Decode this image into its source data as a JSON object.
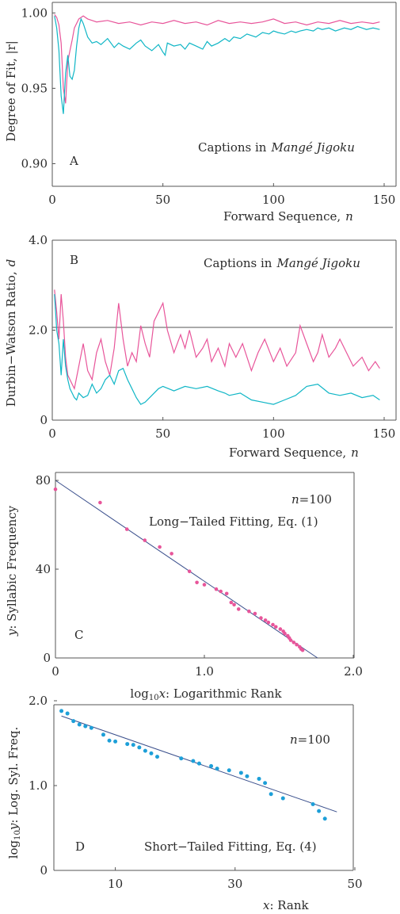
{
  "colors": {
    "pink": "#e8559a",
    "cyan": "#10b6c6",
    "blue": "#1d9fd8",
    "line": "#3a4f8c",
    "axis": "#555555"
  },
  "chart_data": [
    {
      "panel": "A",
      "type": "line",
      "ylabel": "Degree of Fit, |r|",
      "xlabel": "Forward Sequence, n",
      "annotation": "Captions in Mangé Jigoku",
      "xlim": [
        0,
        150
      ],
      "ylim": [
        0.885,
        1.007
      ],
      "xticks": [
        "0",
        "50",
        "100",
        "150"
      ],
      "yticks": [
        "0.90",
        "0.95",
        "1.00"
      ],
      "series": [
        {
          "color": "pink",
          "x": [
            1,
            2,
            3,
            4,
            5,
            6,
            7,
            8,
            9,
            10,
            12,
            14,
            16,
            18,
            20,
            25,
            30,
            35,
            40,
            45,
            50,
            55,
            60,
            65,
            70,
            75,
            80,
            85,
            90,
            95,
            100,
            105,
            110,
            115,
            120,
            125,
            130,
            135,
            140,
            145,
            148
          ],
          "y": [
            0.999,
            0.997,
            0.992,
            0.98,
            0.95,
            0.94,
            0.968,
            0.975,
            0.982,
            0.99,
            0.996,
            0.998,
            0.996,
            0.995,
            0.994,
            0.995,
            0.993,
            0.994,
            0.992,
            0.994,
            0.993,
            0.995,
            0.993,
            0.994,
            0.992,
            0.995,
            0.993,
            0.994,
            0.993,
            0.994,
            0.996,
            0.993,
            0.994,
            0.992,
            0.994,
            0.993,
            0.995,
            0.993,
            0.994,
            0.993,
            0.994
          ]
        },
        {
          "color": "cyan",
          "x": [
            1,
            2,
            3,
            4,
            5,
            6,
            7,
            8,
            9,
            10,
            11,
            12,
            13,
            14,
            16,
            18,
            20,
            22,
            25,
            28,
            30,
            32,
            35,
            38,
            40,
            42,
            45,
            48,
            50,
            51,
            52,
            55,
            58,
            60,
            62,
            65,
            68,
            70,
            72,
            75,
            78,
            80,
            82,
            85,
            88,
            90,
            92,
            95,
            98,
            100,
            102,
            105,
            108,
            110,
            112,
            115,
            118,
            120,
            122,
            125,
            128,
            130,
            132,
            135,
            138,
            140,
            142,
            145,
            148
          ],
          "y": [
            0.998,
            0.99,
            0.975,
            0.945,
            0.933,
            0.96,
            0.972,
            0.958,
            0.956,
            0.962,
            0.978,
            0.99,
            0.996,
            0.993,
            0.984,
            0.98,
            0.981,
            0.979,
            0.983,
            0.977,
            0.98,
            0.978,
            0.976,
            0.98,
            0.982,
            0.978,
            0.975,
            0.979,
            0.974,
            0.972,
            0.98,
            0.978,
            0.979,
            0.976,
            0.98,
            0.978,
            0.976,
            0.981,
            0.978,
            0.98,
            0.983,
            0.981,
            0.984,
            0.983,
            0.986,
            0.985,
            0.984,
            0.987,
            0.986,
            0.988,
            0.987,
            0.986,
            0.988,
            0.987,
            0.988,
            0.989,
            0.988,
            0.99,
            0.989,
            0.99,
            0.988,
            0.989,
            0.99,
            0.989,
            0.991,
            0.99,
            0.989,
            0.99,
            0.989
          ]
        }
      ]
    },
    {
      "panel": "B",
      "type": "line",
      "ylabel": "Durbin−Watson Ratio, d",
      "xlabel": "Forward Sequence, n",
      "annotation": "Captions in Mangé Jigoku",
      "xlim": [
        0,
        150
      ],
      "ylim": [
        0,
        4.0
      ],
      "xticks": [
        "0",
        "50",
        "100",
        "150"
      ],
      "yticks": [
        "0",
        "2.0",
        "4.0"
      ],
      "reference_line": 2.0,
      "series": [
        {
          "color": "pink",
          "x": [
            1,
            2,
            3,
            4,
            5,
            6,
            7,
            8,
            9,
            10,
            12,
            14,
            16,
            18,
            20,
            22,
            24,
            26,
            28,
            30,
            32,
            34,
            36,
            38,
            40,
            42,
            44,
            46,
            48,
            50,
            52,
            55,
            58,
            60,
            62,
            65,
            68,
            70,
            72,
            75,
            78,
            80,
            83,
            86,
            90,
            93,
            96,
            100,
            103,
            106,
            110,
            112,
            115,
            118,
            120,
            122,
            125,
            128,
            130,
            133,
            136,
            140,
            143,
            146,
            148
          ],
          "y": [
            2.9,
            2.4,
            1.8,
            2.8,
            2.2,
            1.4,
            1.0,
            0.9,
            0.8,
            0.7,
            1.2,
            1.7,
            1.1,
            0.9,
            1.5,
            1.8,
            1.3,
            1.0,
            1.6,
            2.6,
            1.8,
            1.2,
            1.5,
            1.3,
            2.1,
            1.7,
            1.4,
            2.2,
            2.4,
            2.6,
            2.0,
            1.5,
            1.9,
            1.6,
            2.0,
            1.4,
            1.6,
            1.8,
            1.3,
            1.6,
            1.2,
            1.7,
            1.4,
            1.7,
            1.1,
            1.5,
            1.8,
            1.3,
            1.6,
            1.2,
            1.5,
            2.1,
            1.7,
            1.3,
            1.5,
            1.9,
            1.4,
            1.6,
            1.8,
            1.5,
            1.2,
            1.4,
            1.1,
            1.3,
            1.15
          ]
        },
        {
          "color": "cyan",
          "x": [
            1,
            2,
            3,
            4,
            5,
            6,
            7,
            8,
            9,
            10,
            11,
            12,
            14,
            16,
            18,
            20,
            22,
            24,
            26,
            28,
            30,
            32,
            34,
            36,
            38,
            40,
            42,
            45,
            48,
            50,
            55,
            60,
            65,
            70,
            75,
            78,
            80,
            85,
            90,
            95,
            100,
            105,
            110,
            115,
            120,
            125,
            130,
            135,
            140,
            145,
            148
          ],
          "y": [
            2.8,
            2.0,
            1.7,
            1.0,
            1.8,
            1.2,
            0.9,
            0.7,
            0.6,
            0.5,
            0.45,
            0.6,
            0.5,
            0.55,
            0.8,
            0.6,
            0.7,
            0.9,
            1.0,
            0.8,
            1.1,
            1.15,
            0.9,
            0.7,
            0.5,
            0.35,
            0.4,
            0.55,
            0.7,
            0.75,
            0.65,
            0.75,
            0.7,
            0.75,
            0.65,
            0.6,
            0.55,
            0.6,
            0.45,
            0.4,
            0.35,
            0.45,
            0.55,
            0.75,
            0.8,
            0.6,
            0.55,
            0.6,
            0.5,
            0.55,
            0.45
          ]
        }
      ]
    },
    {
      "panel": "C",
      "type": "scatter",
      "ylabel": "y: Syllabic Frequency",
      "xlabel": "log₁₀x: Logarithmic Rank",
      "annotation_n": "n=100",
      "annotation": "Long−Tailed Fitting, Eq. (1)",
      "xlim": [
        0,
        2.0
      ],
      "ylim": [
        0,
        85
      ],
      "xticks": [
        "0",
        "1.0",
        "2.0"
      ],
      "yticks": [
        "0",
        "40",
        "80"
      ],
      "points": [
        [
          0.0,
          76
        ],
        [
          0.3,
          70
        ],
        [
          0.48,
          58
        ],
        [
          0.6,
          53
        ],
        [
          0.7,
          50
        ],
        [
          0.78,
          47
        ],
        [
          0.9,
          39
        ],
        [
          0.95,
          34
        ],
        [
          1.0,
          33
        ],
        [
          1.08,
          31
        ],
        [
          1.11,
          30
        ],
        [
          1.15,
          29
        ],
        [
          1.18,
          25
        ],
        [
          1.2,
          24
        ],
        [
          1.23,
          22
        ],
        [
          1.3,
          21
        ],
        [
          1.34,
          20
        ],
        [
          1.38,
          18
        ],
        [
          1.41,
          17
        ],
        [
          1.43,
          16
        ],
        [
          1.46,
          15
        ],
        [
          1.48,
          14
        ],
        [
          1.51,
          13
        ],
        [
          1.53,
          12
        ],
        [
          1.54,
          11
        ],
        [
          1.56,
          10
        ],
        [
          1.57,
          9
        ],
        [
          1.58,
          8
        ],
        [
          1.6,
          7
        ],
        [
          1.62,
          6
        ],
        [
          1.64,
          5
        ],
        [
          1.65,
          4
        ],
        [
          1.66,
          3.5
        ]
      ],
      "fit_line": [
        [
          0.0,
          80
        ],
        [
          1.76,
          0
        ]
      ]
    },
    {
      "panel": "D",
      "type": "scatter",
      "ylabel": "log₁₀y: Log. Syl. Freq.",
      "xlabel": "x: Rank",
      "annotation_n": "n=100",
      "annotation": "Short−Tailed Fitting, Eq. (4)",
      "xlim": [
        0,
        50
      ],
      "ylim": [
        0,
        2.0
      ],
      "xticks": [
        "10",
        "30",
        "50"
      ],
      "yticks": [
        "0",
        "1.0",
        "2.0"
      ],
      "points": [
        [
          1,
          1.88
        ],
        [
          2,
          1.85
        ],
        [
          3,
          1.76
        ],
        [
          4,
          1.72
        ],
        [
          5,
          1.7
        ],
        [
          6,
          1.68
        ],
        [
          8,
          1.6
        ],
        [
          9,
          1.53
        ],
        [
          10,
          1.52
        ],
        [
          12,
          1.49
        ],
        [
          13,
          1.48
        ],
        [
          14,
          1.45
        ],
        [
          15,
          1.41
        ],
        [
          16,
          1.38
        ],
        [
          17,
          1.34
        ],
        [
          21,
          1.32
        ],
        [
          23,
          1.29
        ],
        [
          24,
          1.26
        ],
        [
          26,
          1.23
        ],
        [
          27,
          1.2
        ],
        [
          29,
          1.18
        ],
        [
          31,
          1.15
        ],
        [
          32,
          1.11
        ],
        [
          34,
          1.08
        ],
        [
          35,
          1.03
        ],
        [
          36,
          0.9
        ],
        [
          38,
          0.85
        ],
        [
          43,
          0.78
        ],
        [
          44,
          0.7
        ],
        [
          45,
          0.61
        ]
      ],
      "fit_line": [
        [
          1,
          1.82
        ],
        [
          47,
          0.69
        ]
      ]
    }
  ]
}
